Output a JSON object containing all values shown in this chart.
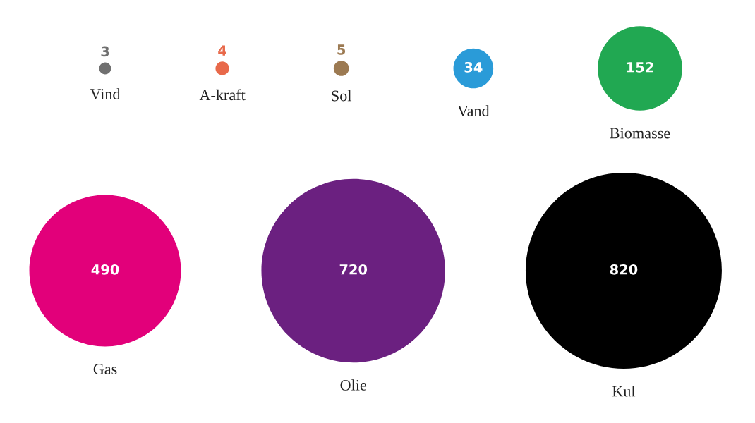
{
  "chart_data": {
    "type": "other",
    "categories": [
      "Vind",
      "A-kraft",
      "Sol",
      "Vand",
      "Biomasse",
      "Gas",
      "Olie",
      "Kul"
    ],
    "values": [
      3,
      4,
      5,
      34,
      152,
      490,
      720,
      820
    ],
    "colors": [
      "#707070",
      "#e8694a",
      "#9c7a52",
      "#2a9bd8",
      "#21a852",
      "#e2007a",
      "#6b2080",
      "#000000"
    ],
    "data_labels": true
  }
}
